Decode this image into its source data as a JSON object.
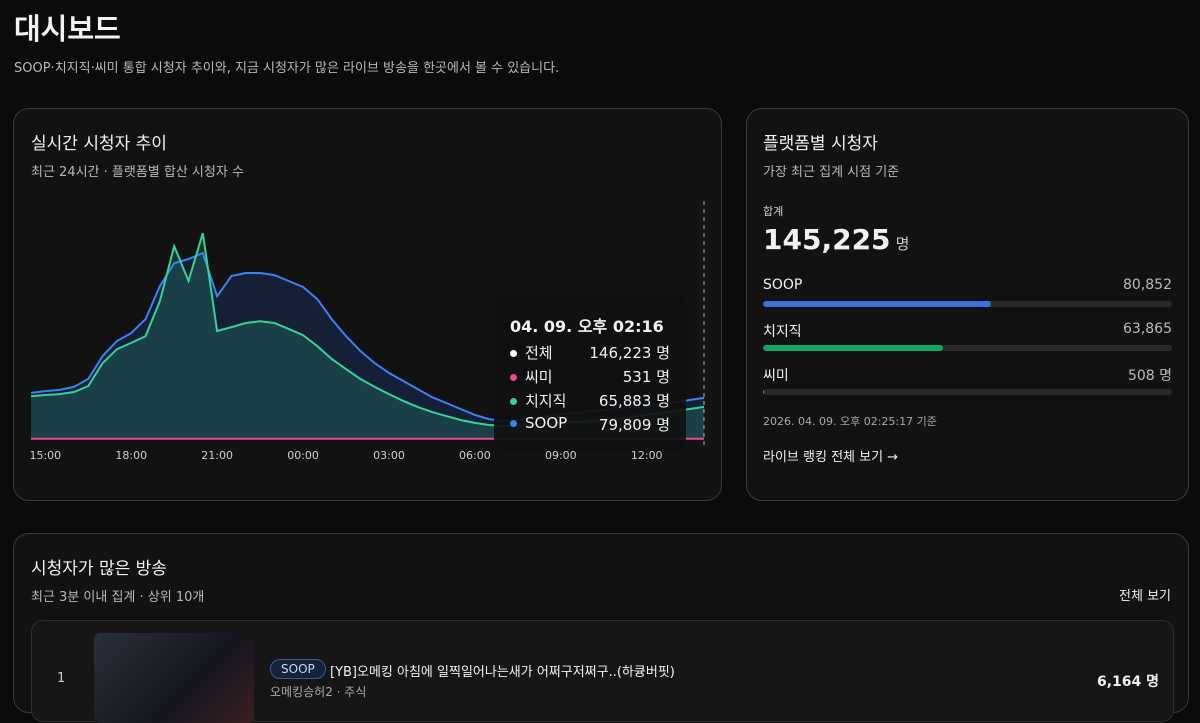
{
  "header": {
    "title": "대시보드",
    "subtitle": "SOOP·치지직·씨미 통합 시청자 추이와, 지금 시청자가 많은 라이브 방송을 한곳에서 볼 수 있습니다."
  },
  "trend_card": {
    "title": "실시간 시청자 추이",
    "subtitle": "최근 24시간 · 플랫폼별 합산 시청자 수"
  },
  "chart_data": {
    "type": "area",
    "categories": [
      null,
      "15:00",
      null,
      null,
      null,
      null,
      null,
      "18:00",
      null,
      null,
      null,
      null,
      null,
      "21:00",
      null,
      null,
      null,
      null,
      null,
      "00:00",
      null,
      null,
      null,
      null,
      null,
      "03:00",
      null,
      null,
      null,
      null,
      null,
      "06:00",
      null,
      null,
      null,
      null,
      null,
      "09:00",
      null,
      null,
      null,
      null,
      null,
      "12:00",
      null,
      null,
      null,
      null
    ],
    "series": [
      {
        "color": "#3b82f6",
        "values": [
          155000,
          161000,
          165000,
          175000,
          202000,
          279000,
          329000,
          356000,
          403000,
          514000,
          591000,
          605000,
          625000,
          480000,
          548000,
          558000,
          558000,
          551000,
          531000,
          511000,
          470000,
          403000,
          346000,
          296000,
          255000,
          222000,
          195000,
          168000,
          141000,
          121000,
          101000,
          81000,
          67000,
          60000,
          64000,
          71000,
          77000,
          84000,
          87000,
          94000,
          97000,
          101000,
          108000,
          111000,
          118000,
          124000,
          131000,
          138000
        ]
      },
      {
        "color": "#34d399",
        "values": [
          144000,
          148000,
          151000,
          158000,
          178000,
          255000,
          302000,
          323000,
          346000,
          464000,
          648000,
          531000,
          692000,
          363000,
          376000,
          390000,
          396000,
          390000,
          370000,
          349000,
          312000,
          269000,
          235000,
          202000,
          175000,
          151000,
          128000,
          108000,
          91000,
          77000,
          64000,
          54000,
          47000,
          44000,
          44000,
          47000,
          50000,
          54000,
          57000,
          60000,
          64000,
          67000,
          74000,
          81000,
          87000,
          94000,
          101000,
          108000
        ]
      },
      {
        "color": "#ec4899",
        "values": [
          600,
          600,
          600,
          600,
          600,
          600,
          600,
          600,
          600,
          600,
          600,
          600,
          600,
          600,
          600,
          600,
          600,
          600,
          600,
          600,
          600,
          600,
          600,
          600,
          600,
          600,
          600,
          600,
          600,
          600,
          600,
          600,
          600,
          600,
          600,
          600,
          600,
          600,
          600,
          600,
          600,
          600,
          600,
          600,
          600,
          600,
          600,
          600
        ]
      }
    ],
    "ylim": [
      0,
      800000
    ],
    "grid": false,
    "tooltip": {
      "title": "04. 09. 오후 02:16",
      "unit": "명",
      "items": [
        {
          "name": "전체",
          "color": "#ffffff",
          "value": "146,223"
        },
        {
          "name": "씨미",
          "color": "#ec4899",
          "value": "531"
        },
        {
          "name": "치지직",
          "color": "#34d399",
          "value": "65,883"
        },
        {
          "name": "SOOP",
          "color": "#3b82f6",
          "value": "79,809"
        }
      ]
    }
  },
  "platform_card": {
    "title": "플랫폼별 시청자",
    "subtitle": "가장 최근 집계 시점 기준",
    "total": {
      "label": "합계",
      "value": 145225,
      "value_label": "145,225",
      "unit": "명"
    },
    "platforms": [
      {
        "name": "SOOP",
        "value": 80852,
        "value_label": "80,852",
        "color": "#3d6fe0"
      },
      {
        "name": "치지직",
        "value": 63865,
        "value_label": "63,865",
        "color": "#10a36a"
      },
      {
        "name": "씨미",
        "value": 508,
        "value_label": "508 명",
        "color": "#ec4899"
      }
    ],
    "updated": "2026. 04. 09. 오후 02:25:17 기준",
    "link": "라이브 랭킹 전체 보기 →"
  },
  "live_card": {
    "title": "시청자가 많은 방송",
    "subtitle": "최근 3분 이내 집계 · 상위 10개",
    "view_all": "전체 보기",
    "items": [
      {
        "rank": "1",
        "platform": "SOOP",
        "title": "[YB]오메킹 아침에 일찍일어나는새가 어쩌구저쩌구..(하큥버핏)",
        "channel": "오메킹승허2 · 주식",
        "viewers": "6,164 명"
      }
    ]
  }
}
